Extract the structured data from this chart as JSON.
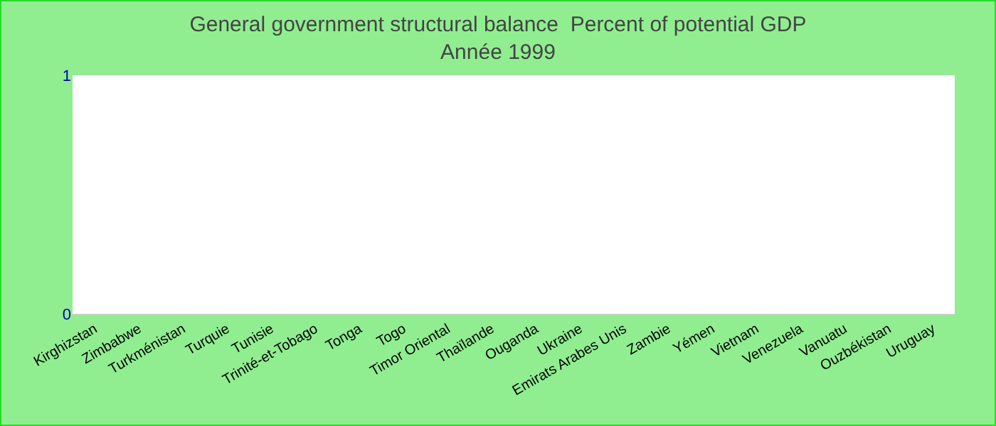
{
  "chart_data": {
    "type": "bar",
    "title": "General government structural balance  Percent of potential GDP",
    "subtitle": "Année 1999",
    "categories": [
      "Kirghizstan",
      "Zimbabwe",
      "Turkménistan",
      "Turquie",
      "Tunisie",
      "Trinité-et-Tobago",
      "Tonga",
      "Togo",
      "Timor Oriental",
      "Thaïlande",
      "Ouganda",
      "Ukraine",
      "Emirats Arabes Unis",
      "Zambie",
      "Yémen",
      "Vietnam",
      "Venezuela",
      "Vanuatu",
      "Ouzbékistan",
      "Uruguay"
    ],
    "values": [
      null,
      null,
      null,
      null,
      null,
      null,
      null,
      null,
      null,
      null,
      null,
      null,
      null,
      null,
      null,
      null,
      null,
      null,
      null,
      null
    ],
    "ylim": [
      0,
      1
    ],
    "yticks": [
      0,
      1
    ],
    "grid": false,
    "legend": false
  }
}
